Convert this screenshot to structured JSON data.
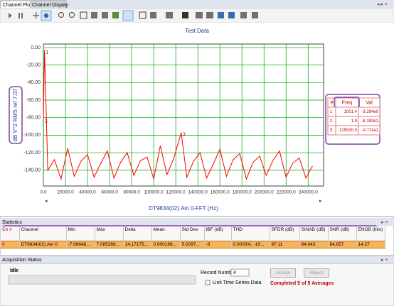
{
  "tabs": [
    "Channel Plot",
    "Channel Display"
  ],
  "chart_data": {
    "type": "line",
    "title": "Test Data",
    "x_label": "DT9834(02).Ain 0-FFT (Hz)",
    "y_label": "dB V^2 RMS ref 7.07",
    "x": [
      1.9,
      1001.4,
      4000,
      10000,
      16000,
      22000,
      28000,
      34000,
      40000,
      46000,
      52000,
      58000,
      64000,
      70000,
      76000,
      82000,
      88000,
      94000,
      100000,
      106000,
      112000,
      118000,
      125000,
      130000,
      136000,
      142000,
      148000,
      154000,
      160000,
      166000,
      172000,
      178000,
      184000,
      190000,
      196000,
      202000,
      208000,
      214000,
      220000,
      226000,
      232000,
      238000,
      244000
    ],
    "series": [
      {
        "color": "#ff0000",
        "values": [
          -81.83,
          -3.294,
          -140,
          -128,
          -150,
          -115,
          -147,
          -130,
          -122,
          -148,
          -132,
          -118,
          -149,
          -131,
          -120,
          -146,
          -129,
          -125,
          -150,
          -112,
          -145,
          -127,
          -97.11,
          -148,
          -130,
          -120,
          -149,
          -133,
          -116,
          -147,
          -128,
          -121,
          -150,
          -131,
          -124,
          -146,
          -129,
          -118,
          -148,
          -132,
          -126,
          -149,
          -135
        ]
      }
    ],
    "xlim": [
      0,
      254000
    ],
    "ylim": [
      -158,
      4
    ],
    "xticks": [
      {
        "value": 0,
        "label": "0.0"
      },
      {
        "value": 20000,
        "label": "20000.0"
      },
      {
        "value": 40000,
        "label": "40000.0"
      },
      {
        "value": 60000,
        "label": "60000.0"
      },
      {
        "value": 80000,
        "label": "80000.0"
      },
      {
        "value": 100000,
        "label": "100000.0"
      },
      {
        "value": 120000,
        "label": "120000.0"
      },
      {
        "value": 140000,
        "label": "140000.0"
      },
      {
        "value": 160000,
        "label": "160000.0"
      },
      {
        "value": 180000,
        "label": "180000.0"
      },
      {
        "value": 200000,
        "label": "200000.0"
      },
      {
        "value": 220000,
        "label": "220000.0"
      },
      {
        "value": 240000,
        "label": "240000.0"
      }
    ],
    "yticks": [
      {
        "value": 0,
        "label": "0.00"
      },
      {
        "value": -20,
        "label": "-20.00"
      },
      {
        "value": -40,
        "label": "-40.00"
      },
      {
        "value": -60,
        "label": "-60.00"
      },
      {
        "value": -80,
        "label": "-80.00"
      },
      {
        "value": -100,
        "label": "-100.00"
      },
      {
        "value": -120,
        "label": "-120.00"
      },
      {
        "value": -140,
        "label": "-140.00"
      }
    ],
    "grid": true,
    "grid_color": "#00a000"
  },
  "marker_table": {
    "headers": [
      "#",
      "Freq",
      "Val"
    ],
    "rows": [
      [
        "1",
        "1001.4",
        "-3.294e0"
      ],
      [
        "2",
        "1.9",
        "-8.183e1"
      ],
      [
        "3",
        "125000.0",
        "-9.711e1"
      ]
    ]
  },
  "statistics": {
    "title": "Statistics",
    "headers": [
      "Ch #",
      "Channel",
      "Min",
      "Max",
      "Delta",
      "Mean",
      "Std Dev",
      "IBF (dB)",
      "THD",
      "SFDR (dB)",
      "SINAD (dB)",
      "SNR (dB)",
      "ENOB (bits)"
    ],
    "rows": [
      [
        "0",
        "DT9834(02).Ain 0",
        "-7.08648...",
        "7.085266...",
        "14.17175...",
        "0.000189...",
        "5.0097...",
        "-3",
        "0.0003%, -10...",
        "97.11",
        "84.643",
        "84.657",
        "14.27"
      ]
    ]
  },
  "acquisition": {
    "title": "Acquisition Status",
    "status": "Idle",
    "record_label": "Record Number",
    "record_value": "4",
    "link_label": "Link Time Series Data",
    "accept": "Accept",
    "reject": "Reject",
    "completed": "Completed 5 of 5 Averages"
  }
}
